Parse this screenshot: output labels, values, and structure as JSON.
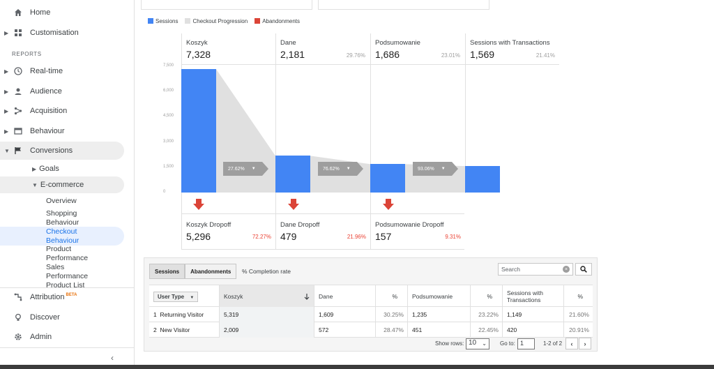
{
  "sidebar": {
    "home": "Home",
    "customisation": "Customisation",
    "reports_label": "REPORTS",
    "realtime": "Real-time",
    "audience": "Audience",
    "acquisition": "Acquisition",
    "behaviour": "Behaviour",
    "conversions": "Conversions",
    "goals": "Goals",
    "ecommerce": "E-commerce",
    "leaves": [
      "Overview",
      "Shopping Behaviour",
      "Checkout Behaviour",
      "Product Performance",
      "Sales Performance",
      "Product List"
    ],
    "attribution": "Attribution",
    "beta": "BETA",
    "discover": "Discover",
    "admin": "Admin"
  },
  "legend": {
    "sessions": "Sessions",
    "progression": "Checkout Progression",
    "abandonments": "Abandonments",
    "colors": {
      "sessions": "#4285f4",
      "progression": "#e0e0e0",
      "abandonments": "#db4437"
    }
  },
  "chart_data": {
    "type": "bar",
    "categories": [
      "Koszyk",
      "Dane",
      "Podsumowanie",
      "Sessions with Transactions"
    ],
    "values": [
      7328,
      2181,
      1686,
      1569
    ],
    "stage_values": [
      "7,328",
      "2,181",
      "1,686",
      "1,569"
    ],
    "stage_pcts": [
      "",
      "29.76%",
      "23.01%",
      "21.41%"
    ],
    "yticks": [
      "7,500",
      "6,000",
      "4,500",
      "3,000",
      "1,500",
      "0"
    ],
    "ylim": [
      0,
      7500
    ],
    "progression": [
      "27.62%",
      "76.62%",
      "93.06%"
    ],
    "dropoffs": [
      {
        "name": "Koszyk Dropoff",
        "value": "5,296",
        "pct": "72.27%"
      },
      {
        "name": "Dane Dropoff",
        "value": "479",
        "pct": "21.96%"
      },
      {
        "name": "Podsumowanie Dropoff",
        "value": "157",
        "pct": "9.31%"
      }
    ]
  },
  "table": {
    "tab_sessions": "Sessions",
    "tab_abandonments": "Abandonments",
    "completion": "% Completion rate",
    "search_placeholder": "Search",
    "headers": [
      "User Type",
      "Koszyk",
      "Dane",
      "%",
      "Podsumowanie",
      "%",
      "Sessions with Transactions",
      "%"
    ],
    "rows": [
      [
        "1",
        "Returning Visitor",
        "5,319",
        "1,609",
        "30.25%",
        "1,235",
        "23.22%",
        "1,149",
        "21.60%"
      ],
      [
        "2",
        "New Visitor",
        "2,009",
        "572",
        "28.47%",
        "451",
        "22.45%",
        "420",
        "20.91%"
      ]
    ],
    "show_rows_label": "Show rows:",
    "show_rows_value": "10",
    "goto_label": "Go to:",
    "goto_value": "1",
    "range": "1-2 of 2"
  }
}
